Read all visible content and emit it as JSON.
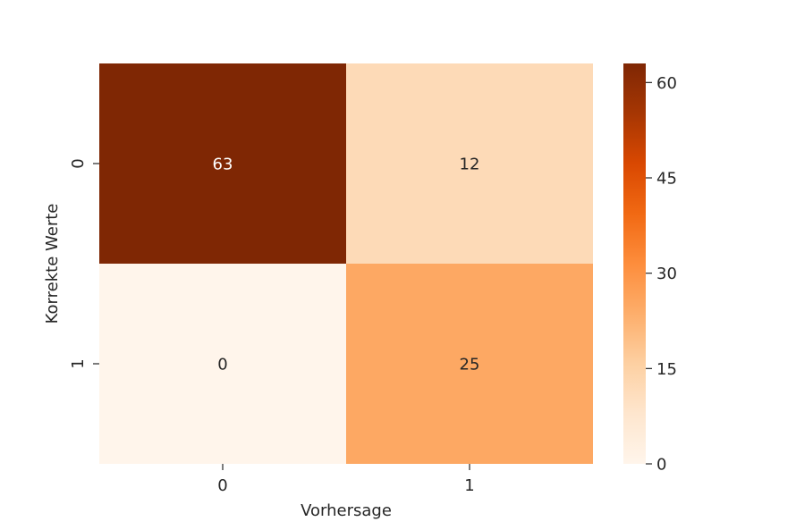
{
  "chart_data": {
    "type": "heatmap",
    "title": "",
    "xlabel": "Vorhersage",
    "ylabel": "Korrekte Werte",
    "x_categories": [
      "0",
      "1"
    ],
    "y_categories": [
      "0",
      "1"
    ],
    "matrix": [
      [
        63,
        12
      ],
      [
        0,
        25
      ]
    ],
    "annotations": [
      "63",
      "12",
      "0",
      "25"
    ],
    "colormap": "Oranges",
    "color_range": [
      0,
      63
    ],
    "colorbar": {
      "ticks": [
        0,
        15,
        30,
        45,
        60
      ],
      "tick_labels": [
        "0",
        "15",
        "30",
        "45",
        "60"
      ],
      "placement": "right"
    },
    "grid": false
  }
}
